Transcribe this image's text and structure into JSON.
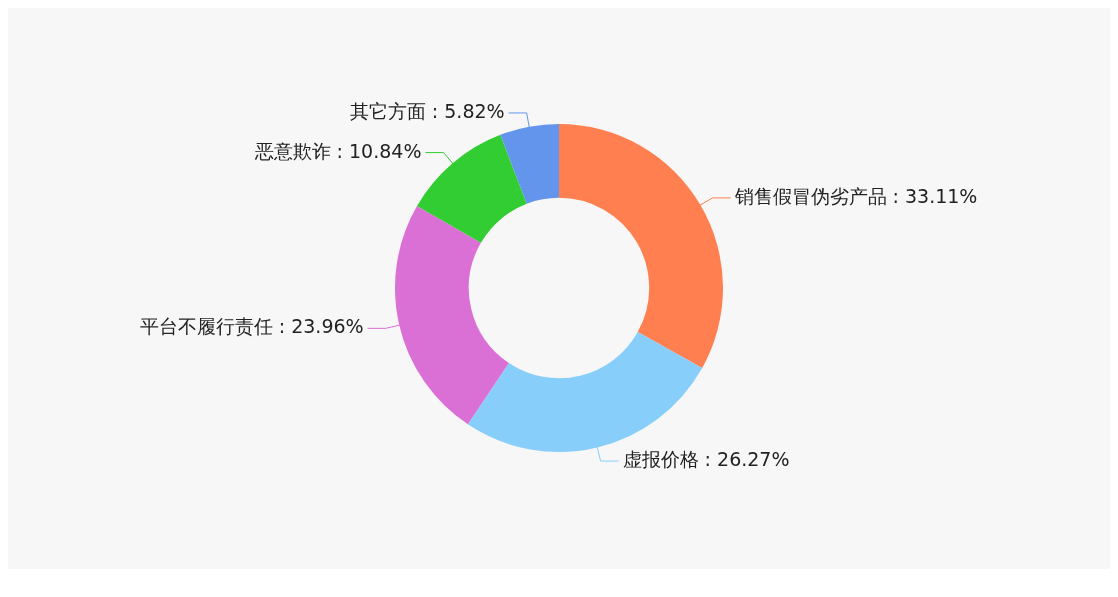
{
  "chart_data": {
    "type": "donut",
    "categories": [
      "销售假冒伪劣产品",
      "虚报价格",
      "平台不履行责任",
      "恶意欺诈",
      "其它方面"
    ],
    "values": [
      33.11,
      26.27,
      23.96,
      10.84,
      5.82
    ],
    "colors": [
      "#ff7f50",
      "#87cefa",
      "#da70d6",
      "#32cd32",
      "#6495ed"
    ],
    "value_labels": [
      ": 33.11%",
      ": 26.27%",
      ": 23.96%",
      ": 10.84%",
      ": 5.82%"
    ],
    "legend": false
  }
}
